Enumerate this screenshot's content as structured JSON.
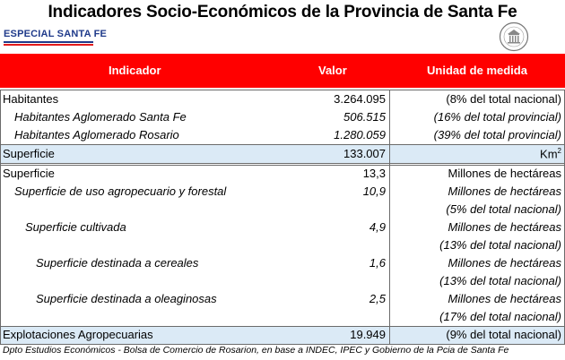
{
  "title": "Indicadores Socio-Económicos de la Provincia de Santa Fe",
  "badge": "ESPECIAL SANTA FE",
  "header": {
    "indicador": "Indicador",
    "valor": "Valor",
    "unidad": "Unidad de medida"
  },
  "rows": [
    {
      "indicador": "Habitantes",
      "valor": "3.264.095",
      "unidad": "(8% del total nacional)"
    },
    {
      "indicador": "Habitantes Aglomerado Santa Fe",
      "valor": "506.515",
      "unidad": "(16% del total provincial)"
    },
    {
      "indicador": "Habitantes Aglomerado Rosario",
      "valor": "1.280.059",
      "unidad": "(39% del total provincial)"
    },
    {
      "indicador": "Superficie",
      "valor": "133.007",
      "unidad": "Km",
      "unidad_sup": "2"
    },
    {
      "indicador": "Superficie",
      "valor": "13,3",
      "unidad": "Millones de hectáreas"
    },
    {
      "indicador": "Superficie de uso agropecuario y forestal",
      "valor": "10,9",
      "unidad": "Millones de hectáreas",
      "unidad2": "(5% del total nacional)"
    },
    {
      "indicador": "Superficie cultivada",
      "valor": "4,9",
      "unidad": "Millones de hectáreas",
      "unidad2": "(13% del total nacional)"
    },
    {
      "indicador": "Superficie destinada a cereales",
      "valor": "1,6",
      "unidad": "Millones de hectáreas",
      "unidad2": "(13% del total nacional)"
    },
    {
      "indicador": "Superficie destinada a oleaginosas",
      "valor": "2,5",
      "unidad": "Millones de hectáreas",
      "unidad2": "(17% del total nacional)"
    },
    {
      "indicador": "Explotaciones Agropecuarias",
      "valor": "19.949",
      "unidad": "(9% del total nacional)"
    }
  ],
  "footer": "Dpto Estudios Económicos - Bolsa de Comercio de Rosarion, en base a INDEC, IPEC y Gobierno de la Pcia de Santa Fe",
  "colors": {
    "header_bg": "#ff0000",
    "shade": "#dbeaf6",
    "badge": "#1f3a8a"
  }
}
